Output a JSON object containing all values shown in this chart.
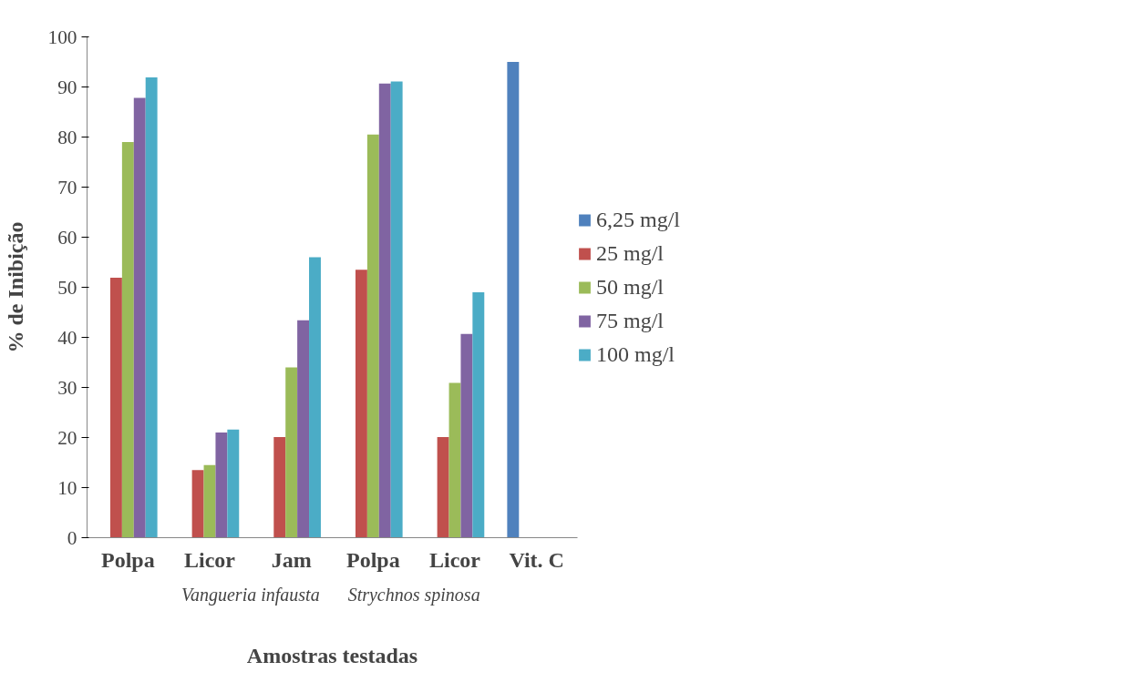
{
  "chart_data": {
    "type": "bar",
    "xlabel": "Amostras testadas",
    "ylabel": "% de Inibição",
    "categories": [
      "Polpa",
      "Licor",
      "Jam",
      "Polpa",
      "Licor",
      "Vit. C"
    ],
    "series": [
      {
        "name": "6,25 mg/l",
        "color": "#4f81bd",
        "values": [
          null,
          null,
          null,
          null,
          null,
          95.0
        ]
      },
      {
        "name": "25 mg/l",
        "color": "#c0504d",
        "values": [
          51.9,
          13.5,
          20.1,
          53.5,
          20.1,
          null
        ]
      },
      {
        "name": "50 mg/l",
        "color": "#9bbb59",
        "values": [
          79.0,
          14.5,
          34.0,
          80.5,
          30.9,
          null
        ]
      },
      {
        "name": "75 mg/l",
        "color": "#8064a2",
        "values": [
          87.8,
          21.0,
          43.4,
          90.7,
          40.7,
          null
        ]
      },
      {
        "name": "100 mg/l",
        "color": "#4bacc6",
        "values": [
          91.9,
          21.6,
          56.0,
          91.1,
          49.0,
          null
        ]
      }
    ],
    "annotations": [
      "Vangueria infausta",
      "Strychnos spinosa"
    ],
    "ylim": [
      0,
      100
    ],
    "yticks": [
      0,
      10,
      20,
      30,
      40,
      50,
      60,
      70,
      80,
      90,
      100
    ],
    "grid": false,
    "legend": "right"
  }
}
